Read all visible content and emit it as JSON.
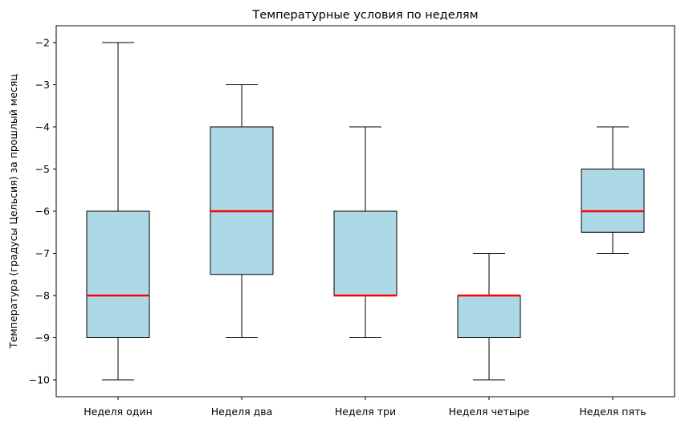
{
  "chart_data": {
    "type": "boxplot",
    "title": "Температурные условия по неделям",
    "xlabel": "",
    "ylabel": "Температура (градусы Цельсия) за прошлый месяц",
    "ylim": [
      -10.4,
      -1.6
    ],
    "yticks": [
      -2,
      -3,
      -4,
      -5,
      -6,
      -7,
      -8,
      -9,
      -10
    ],
    "ytick_labels": [
      "−2",
      "−3",
      "−4",
      "−5",
      "−6",
      "−7",
      "−8",
      "−9",
      "−10"
    ],
    "categories": [
      "Неделя один",
      "Неделя два",
      "Неделя три",
      "Неделя четыре",
      "Неделя пять"
    ],
    "boxes": [
      {
        "whisker_low": -10,
        "q1": -9,
        "median": -8,
        "q3": -6,
        "whisker_high": -2
      },
      {
        "whisker_low": -9,
        "q1": -7.5,
        "median": -6,
        "q3": -4,
        "whisker_high": -3
      },
      {
        "whisker_low": -9,
        "q1": -8,
        "median": -8,
        "q3": -6,
        "whisker_high": -4
      },
      {
        "whisker_low": -10,
        "q1": -9,
        "median": -8,
        "q3": -8,
        "whisker_high": -7
      },
      {
        "whisker_low": -7,
        "q1": -6.5,
        "median": -6,
        "q3": -5,
        "whisker_high": -4
      }
    ],
    "colors": {
      "box_fill": "#add8e6",
      "median": "#ff0000",
      "edge": "#000000"
    },
    "grid": false,
    "legend": "none"
  }
}
